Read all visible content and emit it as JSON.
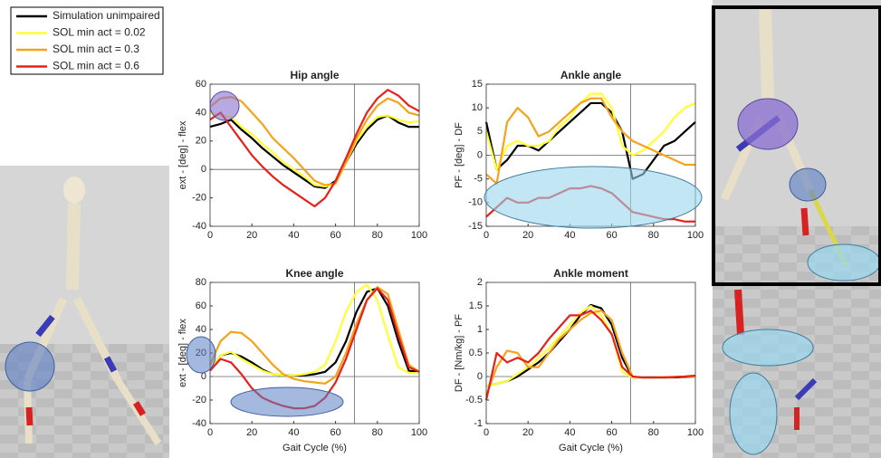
{
  "legend": [
    {
      "name": "Simulation unimpaired",
      "color": "#000000"
    },
    {
      "name": "SOL min act = 0.02",
      "color": "#ffff33"
    },
    {
      "name": "SOL min act = 0.3",
      "color": "#f5a31a"
    },
    {
      "name": "SOL min act = 0.6",
      "color": "#e8201c"
    }
  ],
  "chart_data": [
    {
      "type": "line",
      "title": "Hip angle",
      "ylabel": "ext - [deg] - flex",
      "x": [
        0,
        5,
        10,
        15,
        20,
        25,
        30,
        35,
        40,
        45,
        50,
        55,
        60,
        65,
        70,
        75,
        80,
        85,
        90,
        95,
        100
      ],
      "xlim": [
        0,
        100
      ],
      "xticks": [
        0,
        20,
        40,
        60,
        80,
        100
      ],
      "ylim": [
        -40,
        60
      ],
      "yticks": [
        -40,
        -20,
        0,
        20,
        40,
        60
      ],
      "vline": 69,
      "series": [
        {
          "values": [
            30,
            32,
            35,
            28,
            22,
            15,
            9,
            3,
            -2,
            -7,
            -12,
            -13,
            -8,
            5,
            18,
            28,
            35,
            38,
            33,
            30,
            30
          ]
        },
        {
          "values": [
            40,
            38,
            37,
            30,
            25,
            18,
            12,
            5,
            0,
            -5,
            -11,
            -12,
            -10,
            5,
            20,
            30,
            37,
            38,
            35,
            33,
            34
          ]
        },
        {
          "values": [
            44,
            50,
            51,
            48,
            40,
            32,
            22,
            15,
            8,
            0,
            -8,
            -11,
            -10,
            5,
            22,
            35,
            45,
            50,
            47,
            40,
            38
          ]
        },
        {
          "values": [
            35,
            40,
            30,
            20,
            10,
            2,
            -5,
            -11,
            -16,
            -21,
            -26,
            -20,
            -8,
            8,
            25,
            40,
            50,
            56,
            52,
            45,
            41
          ]
        }
      ]
    },
    {
      "type": "line",
      "title": "Ankle angle",
      "ylabel": "PF - [deg] - DF",
      "x": [
        0,
        5,
        10,
        15,
        20,
        25,
        30,
        35,
        40,
        45,
        50,
        55,
        60,
        65,
        70,
        75,
        80,
        85,
        90,
        95,
        100
      ],
      "xlim": [
        0,
        100
      ],
      "xticks": [
        0,
        20,
        40,
        60,
        80,
        100
      ],
      "ylim": [
        -15,
        15
      ],
      "yticks": [
        -15,
        -10,
        -5,
        0,
        5,
        10,
        15
      ],
      "vline": 69,
      "series": [
        {
          "values": [
            7,
            -3,
            -1,
            2,
            2,
            1,
            3,
            5,
            7,
            9,
            11,
            11,
            9,
            5,
            -5,
            -4,
            -1,
            2,
            3,
            5,
            7
          ]
        },
        {
          "values": [
            5,
            -3,
            2,
            3,
            2,
            2,
            3,
            6,
            8,
            11,
            13,
            13,
            10,
            2,
            0,
            1,
            3,
            5,
            8,
            10,
            11
          ]
        },
        {
          "values": [
            -4,
            -6,
            7,
            10,
            8,
            4,
            5,
            7,
            9,
            11,
            12,
            12,
            8,
            5,
            3,
            2,
            1,
            0,
            -1,
            -2,
            -2
          ]
        },
        {
          "values": [
            -13,
            -11,
            -9,
            -10,
            -10,
            -9,
            -9,
            -8,
            -7,
            -7,
            -6.5,
            -7,
            -8,
            -10,
            -12,
            -12.5,
            -13,
            -13.5,
            -13.5,
            -14,
            -14
          ]
        }
      ]
    },
    {
      "type": "line",
      "title": "Knee angle",
      "ylabel": "ext - [deg] - flex",
      "xlabel": "Gait Cycle (%)",
      "x": [
        0,
        5,
        10,
        15,
        20,
        25,
        30,
        35,
        40,
        45,
        50,
        55,
        60,
        65,
        70,
        75,
        80,
        85,
        90,
        95,
        100
      ],
      "xlim": [
        0,
        100
      ],
      "xticks": [
        0,
        20,
        40,
        60,
        80,
        100
      ],
      "ylim": [
        -40,
        80
      ],
      "yticks": [
        -40,
        -20,
        0,
        20,
        40,
        60,
        80
      ],
      "vline": 69,
      "series": [
        {
          "values": [
            5,
            18,
            20,
            17,
            12,
            6,
            2,
            1,
            1,
            1,
            2,
            4,
            12,
            30,
            55,
            72,
            75,
            60,
            30,
            5,
            4
          ]
        },
        {
          "values": [
            5,
            18,
            21,
            15,
            10,
            5,
            2,
            1,
            1,
            2,
            4,
            10,
            30,
            55,
            72,
            78,
            65,
            35,
            8,
            3,
            3
          ]
        },
        {
          "values": [
            10,
            30,
            38,
            37,
            30,
            20,
            10,
            2,
            -2,
            -4,
            -5,
            -6,
            0,
            20,
            45,
            65,
            76,
            70,
            40,
            10,
            4
          ]
        },
        {
          "values": [
            5,
            15,
            12,
            2,
            -10,
            -18,
            -22,
            -25,
            -27,
            -27,
            -25,
            -18,
            -5,
            15,
            40,
            65,
            75,
            65,
            35,
            8,
            4
          ]
        }
      ]
    },
    {
      "type": "line",
      "title": "Ankle moment",
      "ylabel": "DF - [Nm/kg] - PF",
      "xlabel": "Gait Cycle (%)",
      "x": [
        0,
        5,
        10,
        15,
        20,
        25,
        30,
        35,
        40,
        45,
        50,
        55,
        60,
        65,
        70,
        75,
        80,
        85,
        90,
        95,
        100
      ],
      "xlim": [
        0,
        100
      ],
      "xticks": [
        0,
        20,
        40,
        60,
        80,
        100
      ],
      "ylim": [
        -1,
        2
      ],
      "yticks": [
        -1,
        -0.5,
        0,
        0.5,
        1,
        1.5,
        2
      ],
      "vline": 69,
      "series": [
        {
          "values": [
            -0.2,
            -0.15,
            -0.1,
            0,
            0.15,
            0.3,
            0.5,
            0.75,
            1.0,
            1.3,
            1.52,
            1.45,
            1.1,
            0.4,
            -0.02,
            -0.02,
            -0.02,
            -0.02,
            -0.02,
            -0.01,
            0
          ]
        },
        {
          "values": [
            -0.2,
            -0.15,
            -0.1,
            0.05,
            0.2,
            0.4,
            0.6,
            0.85,
            1.1,
            1.35,
            1.5,
            1.3,
            0.9,
            0.1,
            -0.02,
            -0.02,
            -0.02,
            -0.02,
            -0.01,
            0,
            0
          ]
        },
        {
          "values": [
            -0.4,
            0.2,
            0.55,
            0.5,
            0.2,
            0.2,
            0.5,
            0.8,
            1.0,
            1.2,
            1.35,
            1.4,
            1.2,
            0.5,
            0,
            -0.02,
            -0.02,
            -0.01,
            -0.01,
            0,
            0
          ]
        },
        {
          "values": [
            -0.5,
            0.5,
            0.3,
            0.4,
            0.3,
            0.5,
            0.8,
            1.05,
            1.3,
            1.3,
            1.4,
            1.2,
            0.9,
            0.2,
            0,
            -0.02,
            -0.02,
            -0.02,
            -0.01,
            0,
            0.02
          ]
        }
      ]
    }
  ]
}
